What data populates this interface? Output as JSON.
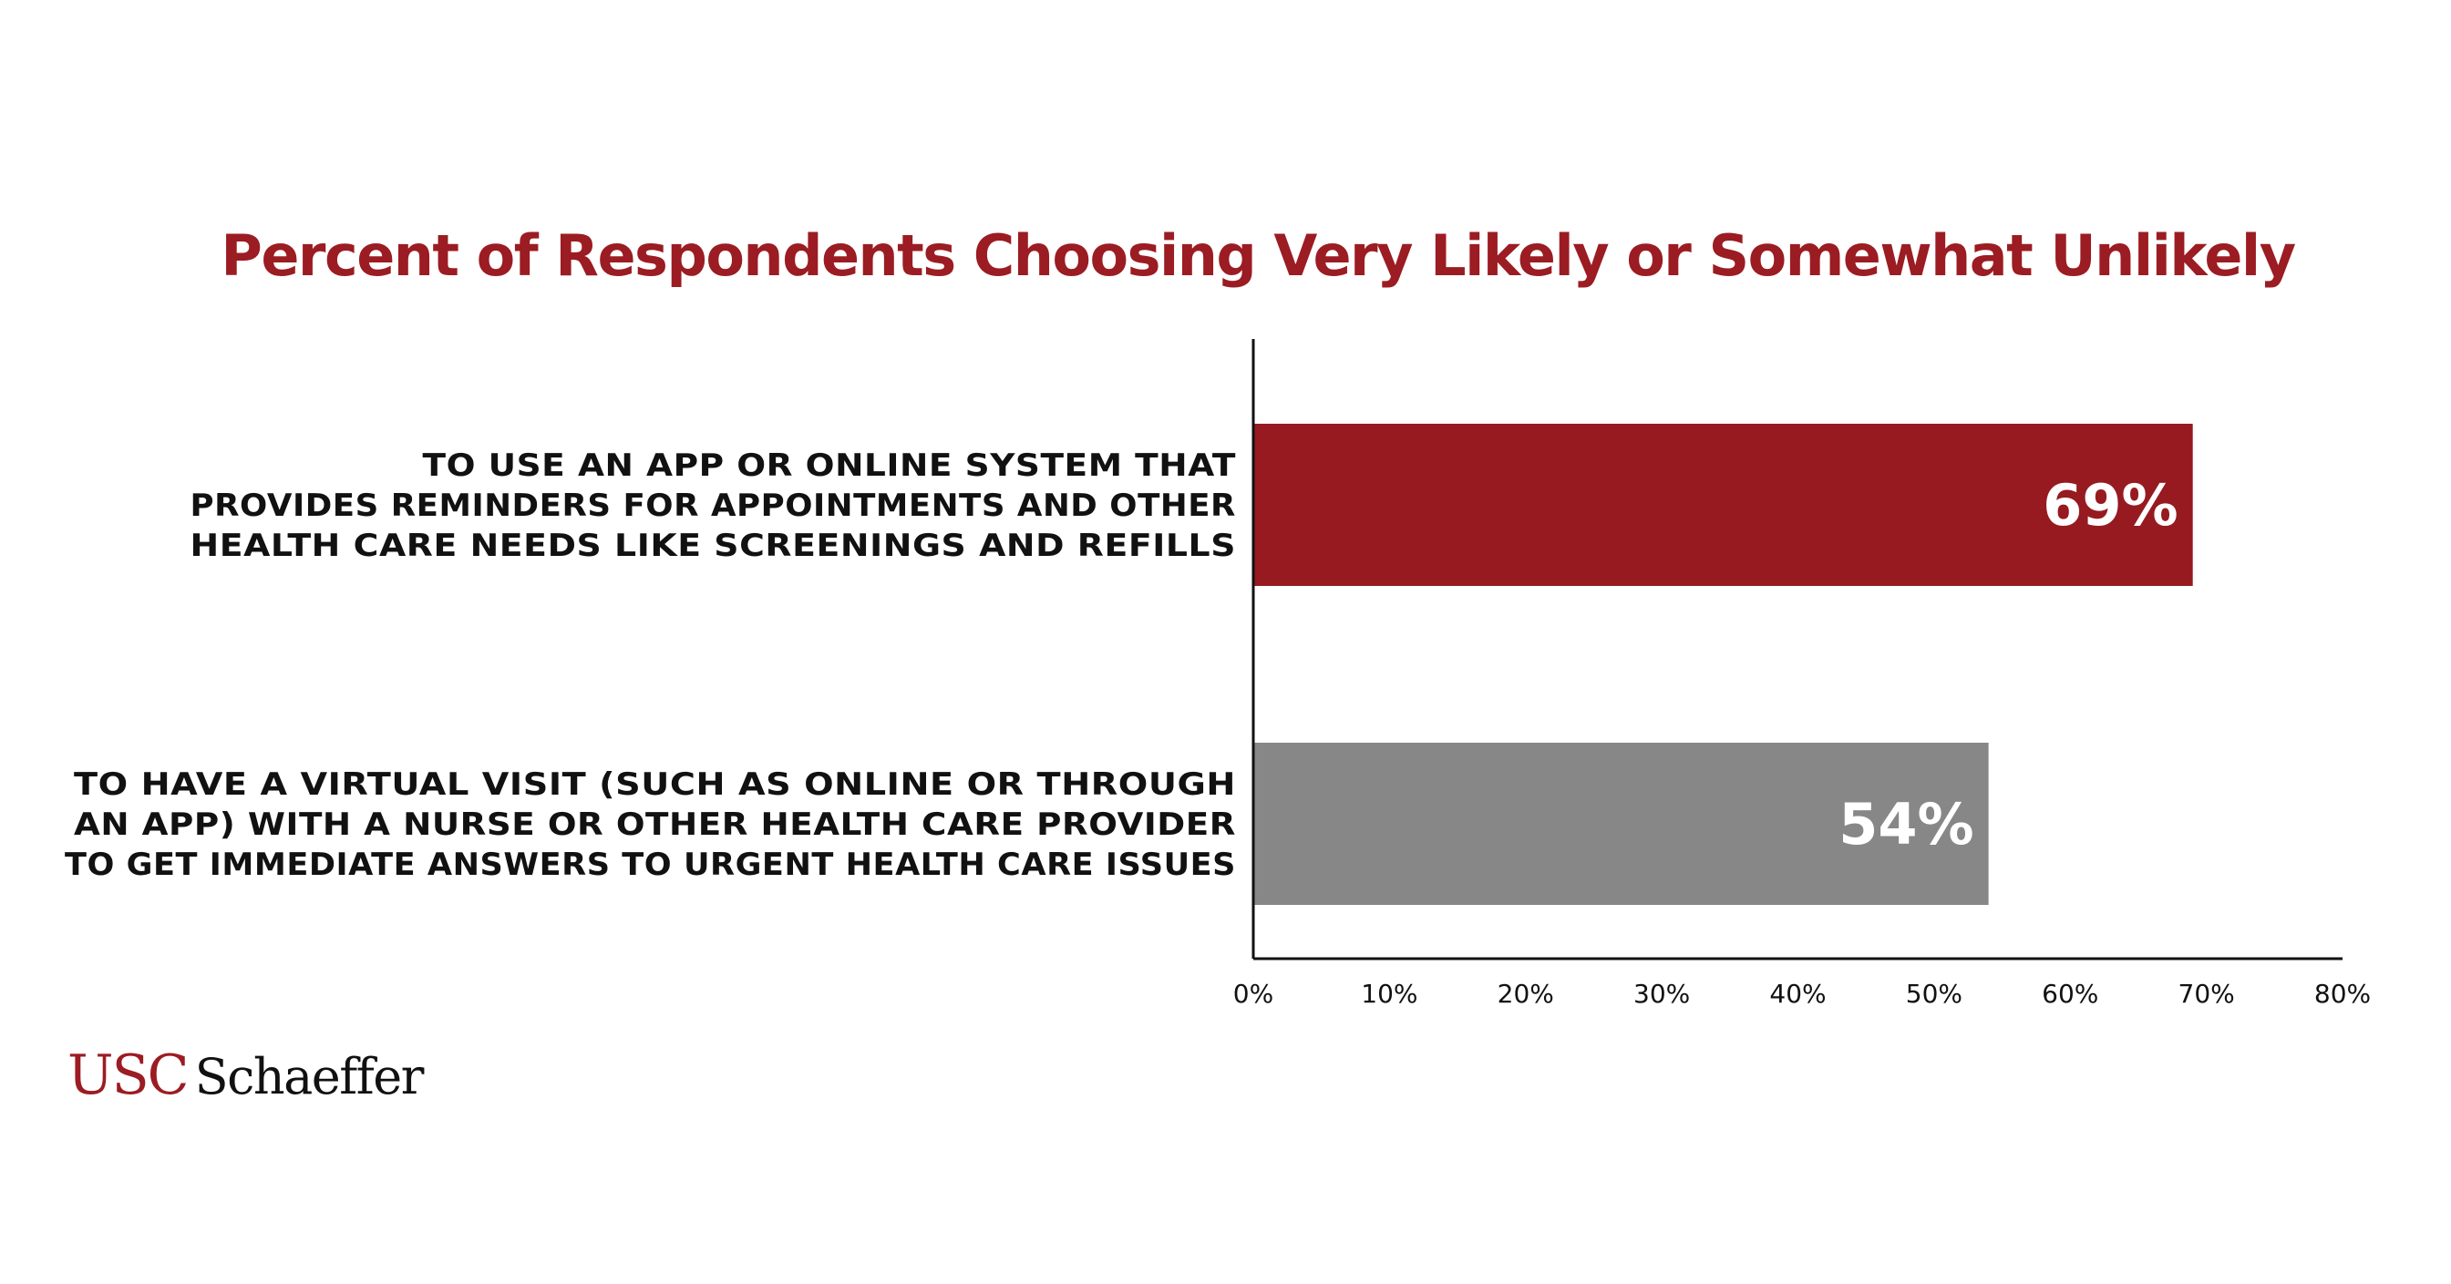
{
  "chart_data": {
    "type": "bar",
    "orientation": "horizontal",
    "title": "Percent of Respondents Choosing Very Likely or Somewhat Unlikely",
    "categories": [
      [
        "TO USE AN APP OR ONLINE SYSTEM THAT",
        "PROVIDES REMINDERS FOR APPOINTMENTS AND OTHER",
        "HEALTH CARE NEEDS LIKE SCREENINGS AND REFILLS"
      ],
      [
        "TO HAVE A VIRTUAL VISIT (SUCH AS ONLINE OR THROUGH",
        "AN APP) WITH A NURSE OR OTHER HEALTH CARE PROVIDER",
        "TO GET IMMEDIATE ANSWERS TO URGENT HEALTH CARE ISSUES"
      ]
    ],
    "values": [
      69,
      54
    ],
    "value_labels": [
      "69%",
      "54%"
    ],
    "bar_colors": [
      "#961a20",
      "#878787"
    ],
    "xlim": [
      0,
      80
    ],
    "ticks": [
      0,
      10,
      20,
      30,
      40,
      50,
      60,
      70,
      80
    ],
    "tick_labels": [
      "0%",
      "10%",
      "20%",
      "30%",
      "40%",
      "50%",
      "60%",
      "70%",
      "80%"
    ],
    "grid": false,
    "legend": "none"
  },
  "logo": {
    "usc": "USC",
    "schaeffer": "Schaeffer"
  },
  "colors": {
    "title": "#9b1c22",
    "axis": "#111111"
  }
}
